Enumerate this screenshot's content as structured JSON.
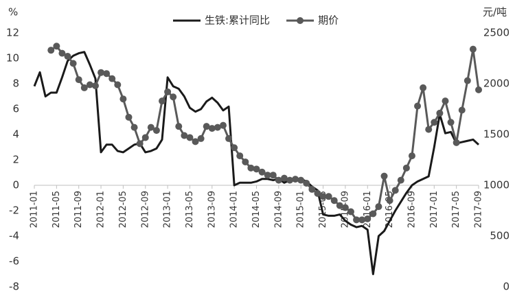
{
  "chart_data": {
    "type": "line",
    "y_label": "%",
    "y2_label": "元/吨",
    "x": [
      "2011-01",
      "2011-02",
      "2011-03",
      "2011-04",
      "2011-05",
      "2011-06",
      "2011-07",
      "2011-08",
      "2011-09",
      "2011-10",
      "2011-11",
      "2011-12",
      "2012-01",
      "2012-02",
      "2012-03",
      "2012-04",
      "2012-05",
      "2012-06",
      "2012-07",
      "2012-08",
      "2012-09",
      "2012-10",
      "2012-11",
      "2012-12",
      "2013-01",
      "2013-02",
      "2013-03",
      "2013-04",
      "2013-05",
      "2013-06",
      "2013-07",
      "2013-08",
      "2013-09",
      "2013-10",
      "2013-11",
      "2013-12",
      "2014-01",
      "2014-02",
      "2014-03",
      "2014-04",
      "2014-05",
      "2014-06",
      "2014-07",
      "2014-08",
      "2014-09",
      "2014-10",
      "2014-11",
      "2014-12",
      "2015-01",
      "2015-02",
      "2015-03",
      "2015-04",
      "2015-05",
      "2015-06",
      "2015-07",
      "2015-08",
      "2015-09",
      "2015-10",
      "2015-11",
      "2015-12",
      "2016-01",
      "2016-02",
      "2016-03",
      "2016-04",
      "2016-05",
      "2016-06",
      "2016-07",
      "2016-08",
      "2016-09",
      "2016-10",
      "2016-11",
      "2016-12",
      "2017-01",
      "2017-02",
      "2017-03",
      "2017-04",
      "2017-05",
      "2017-06",
      "2017-07",
      "2017-08",
      "2017-09"
    ],
    "xticks": [
      "2011-01",
      "2011-05",
      "2011-09",
      "2012-01",
      "2012-05",
      "2012-09",
      "2013-01",
      "2013-05",
      "2013-09",
      "2014-01",
      "2014-05",
      "2014-09",
      "2015-01",
      "2015-05",
      "2015-09",
      "2016-01",
      "2016-05",
      "2016-09",
      "2017-01",
      "2017-05",
      "2017-09"
    ],
    "ylim": [
      -8,
      12
    ],
    "yticks": [
      -8,
      -6,
      -4,
      -2,
      0,
      2,
      4,
      6,
      8,
      10,
      12
    ],
    "y2lim": [
      0,
      2500
    ],
    "y2ticks": [
      0,
      500,
      1000,
      1500,
      2000,
      2500
    ],
    "series": [
      {
        "name": "生铁:累计同比",
        "color": "#1a1a1a",
        "marker": false,
        "values": [
          7.8,
          8.9,
          7.0,
          7.3,
          7.3,
          8.5,
          9.8,
          10.2,
          10.4,
          10.5,
          9.5,
          8.4,
          2.6,
          3.2,
          3.2,
          2.7,
          2.6,
          2.9,
          3.2,
          3.3,
          2.6,
          2.7,
          2.9,
          3.6,
          8.5,
          7.8,
          7.6,
          7.0,
          6.1,
          5.8,
          6.0,
          6.6,
          6.9,
          6.5,
          5.9,
          6.2,
          0.0,
          0.2,
          0.2,
          0.2,
          0.3,
          0.5,
          0.5,
          0.4,
          0.5,
          0.2,
          0.4,
          0.5,
          0.5,
          0.3,
          -0.1,
          -0.4,
          -2.3,
          -2.4,
          -2.4,
          -2.3,
          -2.8,
          -3.1,
          -3.3,
          -3.2,
          -3.5,
          -7.0,
          -4.0,
          -3.6,
          -2.8,
          -2.0,
          -1.3,
          -0.6,
          0.0,
          0.3,
          0.5,
          0.7,
          3.0,
          5.6,
          4.1,
          4.2,
          3.3,
          3.4,
          3.5,
          3.6,
          3.2
        ]
      },
      {
        "name": "期价",
        "color": "#595959",
        "marker": true,
        "axis": "y2",
        "values": [
          null,
          null,
          null,
          2330,
          2370,
          2300,
          2270,
          2200,
          2040,
          1960,
          1990,
          1980,
          2110,
          2100,
          2050,
          1990,
          1850,
          1670,
          1570,
          1410,
          1470,
          1570,
          1540,
          1830,
          1920,
          1870,
          1580,
          1490,
          1470,
          1430,
          1460,
          1580,
          1560,
          1570,
          1590,
          1460,
          1370,
          1290,
          1230,
          1170,
          1160,
          1130,
          1100,
          1100,
          1050,
          1070,
          1050,
          1060,
          1050,
          1020,
          960,
          920,
          890,
          890,
          850,
          800,
          780,
          740,
          660,
          660,
          670,
          720,
          790,
          1090,
          850,
          950,
          1050,
          1170,
          1290,
          1780,
          1960,
          1550,
          1620,
          1710,
          1830,
          1620,
          1420,
          1740,
          2030,
          2340,
          1940
        ]
      }
    ]
  }
}
